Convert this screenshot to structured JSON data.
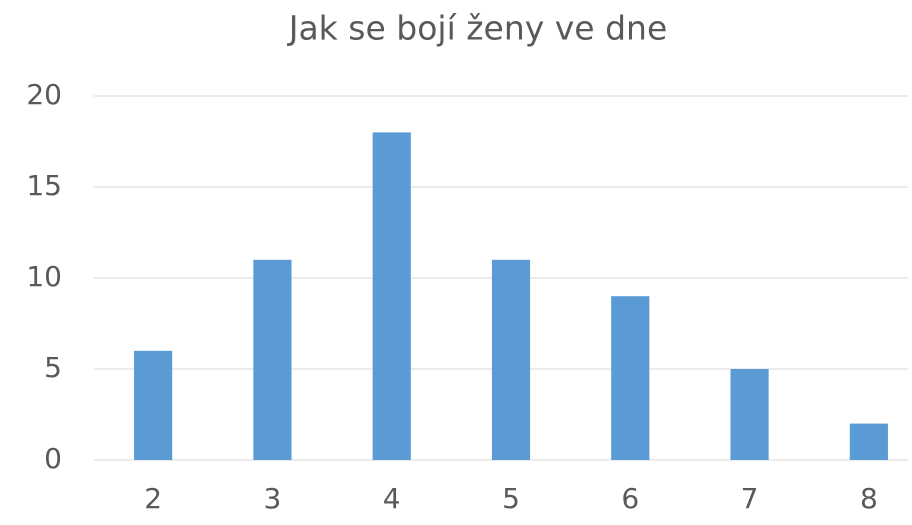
{
  "chart_data": {
    "type": "bar",
    "title": "Jak se bojí ženy ve dne",
    "categories": [
      "2",
      "3",
      "4",
      "5",
      "6",
      "7",
      "8"
    ],
    "values": [
      6,
      11,
      18,
      11,
      9,
      5,
      2
    ],
    "color": "#5b9bd5",
    "ylim": [
      0,
      20
    ],
    "yticks": [
      0,
      5,
      10,
      15,
      20
    ],
    "grid": true
  }
}
